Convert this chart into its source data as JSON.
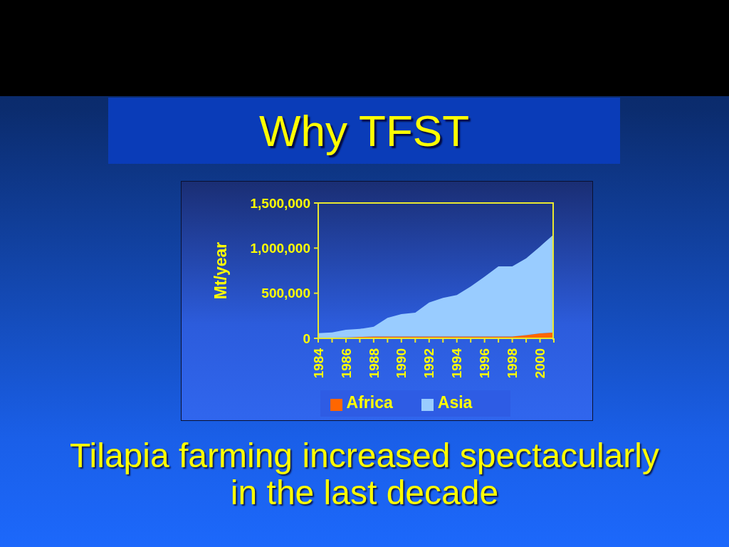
{
  "chart_data": {
    "type": "area",
    "title": "Why TFST",
    "ylabel": "Mt/year",
    "annotations": [
      "Tilapia farming increased spectacularly in the last decade"
    ],
    "x": [
      1984,
      1985,
      1986,
      1987,
      1988,
      1989,
      1990,
      1991,
      1992,
      1993,
      1994,
      1995,
      1996,
      1997,
      1998,
      1999,
      2000,
      2001
    ],
    "xlim": [
      1984,
      2001
    ],
    "xticks": [
      1984,
      {
        "value": 1985,
        "label": null
      },
      1986,
      {
        "value": 1987,
        "label": null
      },
      1988,
      {
        "value": 1989,
        "label": null
      },
      1990,
      {
        "value": 1991,
        "label": null
      },
      1992,
      {
        "value": 1993,
        "label": null
      },
      1994,
      {
        "value": 1995,
        "label": null
      },
      1996,
      {
        "value": 1997,
        "label": null
      },
      1998,
      {
        "value": 1999,
        "label": null
      },
      2000,
      {
        "value": 2001,
        "label": null
      }
    ],
    "ylim": [
      0,
      1500000
    ],
    "yticks": [
      0,
      {
        "value": 500000,
        "label": "500,000"
      },
      {
        "value": 1000000,
        "label": "1,000,000"
      },
      {
        "value": 1500000,
        "label": "1,500,000"
      }
    ],
    "stacked": true,
    "legend": "bottom",
    "series": [
      {
        "name": "Africa",
        "color": "#ff6600",
        "values": [
          5000,
          7000,
          10000,
          15000,
          20000,
          20000,
          20000,
          20000,
          20000,
          20000,
          20000,
          20000,
          20000,
          20000,
          20000,
          35000,
          55000,
          65000
        ]
      },
      {
        "name": "Asia",
        "color": "#99ccff",
        "values": [
          52000,
          58000,
          84000,
          89000,
          108000,
          207000,
          249000,
          264000,
          377000,
          429000,
          460000,
          554000,
          663000,
          778000,
          778000,
          852000,
          962000,
          1088000
        ]
      }
    ]
  }
}
